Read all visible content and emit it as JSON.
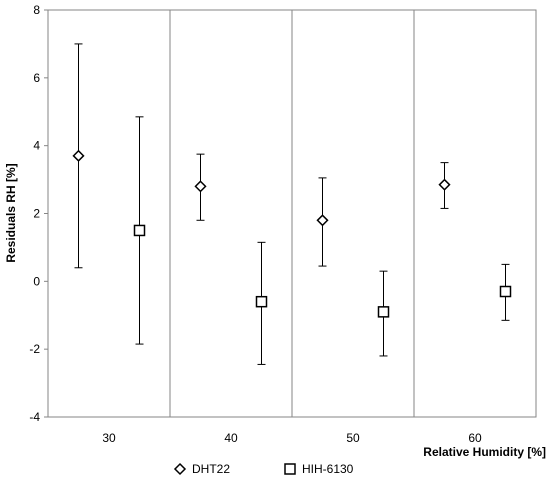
{
  "chart_data": {
    "type": "scatter",
    "xlabel": "Relative Humidity [%]",
    "ylabel": "Residuals RH [%]",
    "ylim": [
      -4,
      8
    ],
    "yticks": [
      -4,
      -2,
      0,
      2,
      4,
      6,
      8
    ],
    "categories": [
      "30",
      "40",
      "50",
      "60"
    ],
    "grid": "vertical",
    "legend_position": "bottom",
    "series": [
      {
        "name": "DHT22",
        "marker": "diamond",
        "values": [
          3.7,
          2.8,
          1.8,
          2.85
        ],
        "error_low": [
          0.4,
          1.8,
          0.45,
          2.15
        ],
        "error_high": [
          7.0,
          3.75,
          3.05,
          3.5
        ]
      },
      {
        "name": "HIH-6130",
        "marker": "square",
        "values": [
          1.5,
          -0.6,
          -0.9,
          -0.3
        ],
        "error_low": [
          -1.85,
          -2.45,
          -2.2,
          -1.15
        ],
        "error_high": [
          4.85,
          1.15,
          0.3,
          0.5
        ]
      }
    ]
  }
}
